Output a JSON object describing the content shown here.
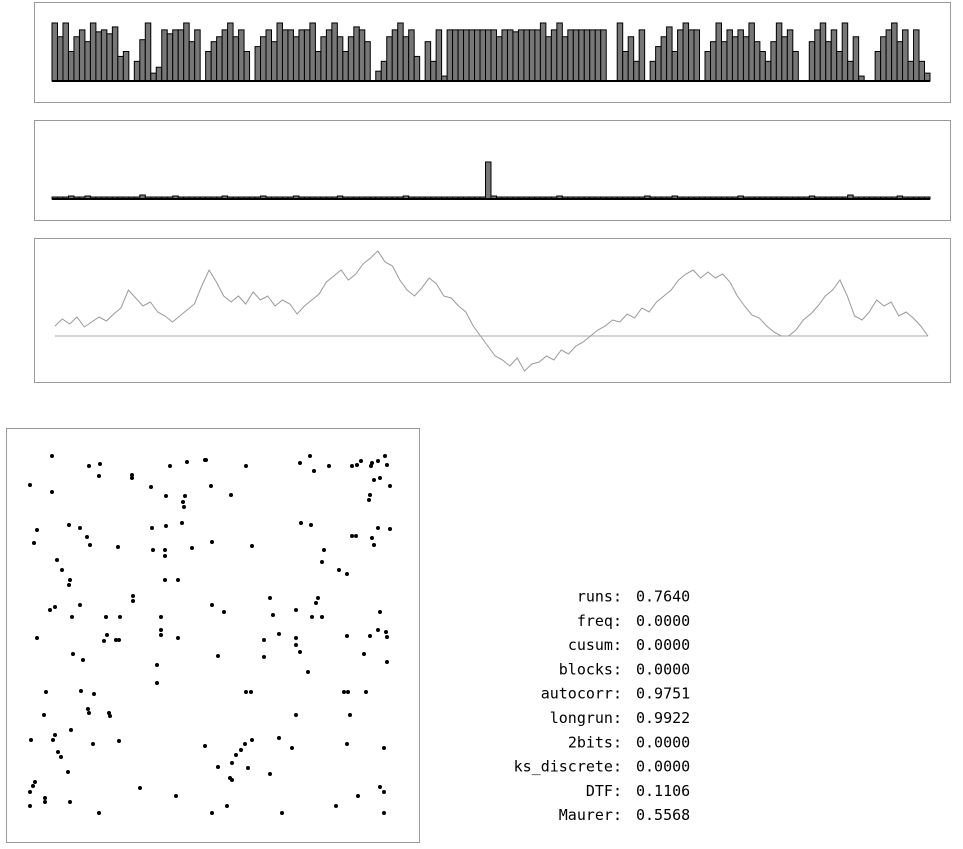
{
  "chart_data": [
    {
      "type": "bar",
      "ylim": [
        0,
        60
      ],
      "color": "#777777",
      "values": [
        59,
        45,
        59,
        30,
        45,
        52,
        40,
        59,
        50,
        52,
        48,
        55,
        25,
        30,
        0,
        20,
        42,
        59,
        8,
        14,
        52,
        48,
        52,
        52,
        59,
        40,
        52,
        0,
        30,
        40,
        45,
        52,
        59,
        45,
        52,
        30,
        0,
        35,
        45,
        52,
        40,
        59,
        52,
        52,
        45,
        52,
        52,
        59,
        30,
        45,
        52,
        59,
        45,
        30,
        45,
        55,
        52,
        40,
        0,
        10,
        20,
        45,
        52,
        59,
        45,
        52,
        25,
        0,
        40,
        20,
        52,
        5,
        52,
        52,
        52,
        52,
        52,
        52,
        52,
        52,
        52,
        45,
        52,
        52,
        50,
        52,
        52,
        52,
        52,
        59,
        45,
        52,
        59,
        45,
        52,
        52,
        52,
        52,
        52,
        52,
        52,
        0,
        0,
        59,
        30,
        45,
        20,
        52,
        0,
        20,
        35,
        45,
        55,
        30,
        52,
        59,
        52,
        52,
        0,
        30,
        40,
        59,
        40,
        52,
        45,
        52,
        45,
        59,
        40,
        30,
        20,
        40,
        59,
        45,
        52,
        30,
        0,
        0,
        40,
        52,
        59,
        40,
        52,
        30,
        59,
        20,
        45,
        5,
        0,
        0,
        30,
        45,
        52,
        59,
        40,
        52,
        20,
        52,
        20,
        8
      ]
    },
    {
      "type": "bar",
      "ylim": [
        0,
        40
      ],
      "color": "#777777",
      "values": [
        2,
        2,
        2,
        3,
        2,
        2,
        3,
        2,
        2,
        2,
        2,
        2,
        2,
        2,
        2,
        2,
        4,
        2,
        2,
        2,
        2,
        2,
        3,
        2,
        2,
        2,
        2,
        2,
        2,
        2,
        2,
        3,
        2,
        2,
        2,
        2,
        2,
        2,
        3,
        2,
        2,
        2,
        2,
        2,
        3,
        2,
        2,
        2,
        2,
        2,
        2,
        2,
        3,
        2,
        2,
        2,
        2,
        2,
        2,
        2,
        2,
        2,
        2,
        2,
        3,
        2,
        2,
        2,
        2,
        2,
        2,
        2,
        2,
        2,
        2,
        2,
        2,
        2,
        2,
        37,
        3,
        2,
        2,
        2,
        2,
        2,
        2,
        2,
        2,
        2,
        2,
        2,
        3,
        2,
        2,
        2,
        2,
        2,
        2,
        2,
        2,
        2,
        2,
        2,
        2,
        2,
        2,
        2,
        3,
        2,
        2,
        2,
        2,
        3,
        2,
        2,
        2,
        2,
        2,
        2,
        2,
        2,
        2,
        2,
        2,
        3,
        2,
        2,
        2,
        2,
        2,
        2,
        2,
        2,
        2,
        2,
        2,
        2,
        3,
        2,
        2,
        2,
        2,
        2,
        2,
        4,
        2,
        2,
        2,
        2,
        2,
        2,
        2,
        2,
        3,
        2,
        2,
        2,
        2,
        2
      ]
    },
    {
      "type": "line",
      "ylim": [
        -46,
        98
      ],
      "color": "#999999",
      "values": [
        10,
        17,
        12,
        19,
        9,
        14,
        19,
        15,
        22,
        28,
        46,
        38,
        30,
        34,
        24,
        20,
        14,
        20,
        26,
        32,
        50,
        66,
        54,
        40,
        34,
        40,
        32,
        44,
        36,
        40,
        30,
        36,
        32,
        22,
        30,
        36,
        42,
        54,
        60,
        66,
        56,
        62,
        72,
        78,
        85,
        74,
        70,
        56,
        46,
        40,
        48,
        58,
        52,
        40,
        38,
        30,
        24,
        10,
        0,
        -10,
        -20,
        -24,
        -30,
        -22,
        -35,
        -28,
        -26,
        -20,
        -24,
        -14,
        -18,
        -10,
        -6,
        0,
        6,
        10,
        16,
        14,
        22,
        18,
        28,
        24,
        34,
        40,
        46,
        56,
        62,
        66,
        58,
        64,
        58,
        62,
        54,
        40,
        30,
        21,
        18,
        10,
        4,
        0,
        0,
        6,
        16,
        22,
        30,
        40,
        46,
        56,
        40,
        20,
        16,
        24,
        36,
        30,
        34,
        20,
        24,
        18,
        10,
        0
      ]
    },
    {
      "type": "scatter",
      "xlim": [
        6,
        419
      ],
      "ylim": [
        842,
        428
      ],
      "color": "#000000",
      "x": [
        52,
        30,
        52,
        89,
        100,
        99,
        132,
        132,
        170,
        187,
        205,
        206,
        246,
        211,
        151,
        166,
        185,
        183,
        184,
        231,
        300,
        310,
        314,
        329,
        352,
        357,
        361,
        372,
        371,
        378,
        385,
        387,
        380,
        390,
        370,
        369,
        374,
        37,
        34,
        69,
        80,
        87,
        90,
        118,
        152,
        166,
        182,
        153,
        165,
        165,
        192,
        212,
        252,
        301,
        311,
        352,
        356,
        372,
        374,
        390,
        378,
        57,
        62,
        70,
        69,
        324,
        322,
        339,
        347,
        165,
        178,
        133,
        133,
        55,
        50,
        80,
        72,
        106,
        120,
        107,
        104,
        116,
        119,
        161,
        161,
        161,
        178,
        212,
        224,
        270,
        273,
        264,
        279,
        296,
        318,
        316,
        312,
        322,
        37,
        73,
        83,
        218,
        264,
        296,
        296,
        300,
        308,
        347,
        370,
        378,
        386,
        387,
        380,
        364,
        387,
        157,
        157,
        46,
        81,
        94,
        88,
        89,
        109,
        110,
        246,
        251,
        344,
        348,
        366,
        44,
        71,
        55,
        53,
        296,
        350,
        31,
        93,
        119,
        205,
        252,
        245,
        241,
        236,
        279,
        292,
        347,
        384,
        58,
        61,
        68,
        218,
        232,
        248,
        230,
        232,
        270,
        35,
        33,
        30,
        45,
        45,
        30,
        70,
        99,
        140,
        176,
        212,
        227,
        282,
        336,
        358,
        380,
        384,
        384
      ],
      "y": [
        456,
        485,
        492,
        466,
        464,
        476,
        475,
        478,
        466,
        462,
        460,
        460,
        466,
        486,
        487,
        496,
        496,
        502,
        507,
        495,
        463,
        456,
        471,
        466,
        466,
        465,
        461,
        463,
        466,
        461,
        456,
        465,
        478,
        486,
        495,
        500,
        480,
        530,
        543,
        525,
        528,
        537,
        545,
        547,
        528,
        526,
        523,
        550,
        550,
        556,
        548,
        542,
        546,
        523,
        525,
        536,
        536,
        538,
        545,
        529,
        528,
        560,
        570,
        580,
        585,
        550,
        562,
        570,
        574,
        580,
        580,
        596,
        601,
        607,
        610,
        605,
        617,
        617,
        617,
        635,
        641,
        640,
        640,
        617,
        630,
        635,
        638,
        605,
        612,
        598,
        615,
        640,
        634,
        610,
        598,
        603,
        617,
        617,
        638,
        654,
        660,
        656,
        657,
        638,
        645,
        652,
        672,
        636,
        636,
        630,
        632,
        637,
        612,
        654,
        662,
        665,
        683,
        692,
        691,
        694,
        709,
        713,
        713,
        716,
        692,
        692,
        692,
        692,
        692,
        715,
        730,
        735,
        740,
        715,
        715,
        740,
        744,
        741,
        746,
        740,
        744,
        750,
        755,
        738,
        748,
        744,
        748,
        752,
        757,
        772,
        767,
        763,
        768,
        778,
        780,
        774,
        782,
        786,
        792,
        798,
        802,
        806,
        802,
        813,
        788,
        796,
        813,
        806,
        813,
        806,
        796,
        787,
        792,
        813
      ]
    }
  ],
  "stats": {
    "rows": [
      {
        "label": "runs:",
        "value": "0.7640"
      },
      {
        "label": "freq:",
        "value": "0.0000"
      },
      {
        "label": "cusum:",
        "value": "0.0000"
      },
      {
        "label": "blocks:",
        "value": "0.0000"
      },
      {
        "label": "autocorr:",
        "value": "0.9751"
      },
      {
        "label": "longrun:",
        "value": "0.9922"
      },
      {
        "label": "2bits:",
        "value": "0.0000"
      },
      {
        "label": "ks_discrete:",
        "value": "0.0000"
      },
      {
        "label": "DTF:",
        "value": "0.1106"
      },
      {
        "label": "Maurer:",
        "value": "0.5568"
      }
    ]
  }
}
